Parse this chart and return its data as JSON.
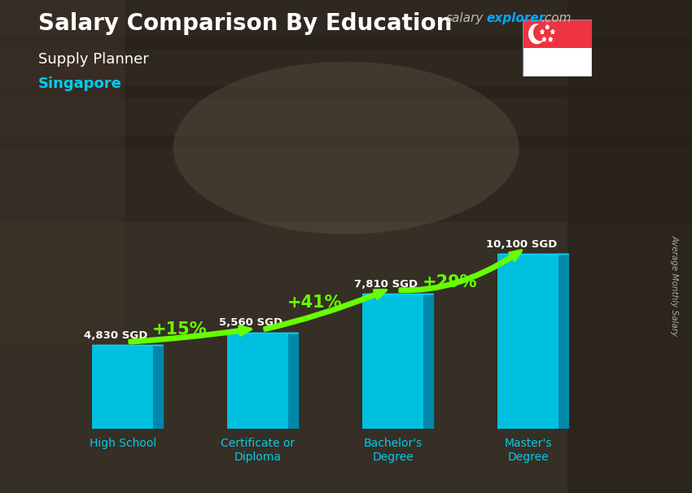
{
  "title_main": "Salary Comparison By Education",
  "title_sub": "Supply Planner",
  "title_location": "Singapore",
  "watermark_salary": "salary",
  "watermark_explorer": "explorer",
  "watermark_com": ".com",
  "ylabel_rotated": "Average Monthly Salary",
  "categories": [
    "High School",
    "Certificate or\nDiploma",
    "Bachelor's\nDegree",
    "Master's\nDegree"
  ],
  "values": [
    4830,
    5560,
    7810,
    10100
  ],
  "labels": [
    "4,830 SGD",
    "5,560 SGD",
    "7,810 SGD",
    "10,100 SGD"
  ],
  "pct_changes": [
    "+15%",
    "+41%",
    "+29%"
  ],
  "bar_face_color": "#00c0e0",
  "bar_side_color": "#0088aa",
  "bar_top_color": "#00d8f8",
  "bg_dark": "#2b2b2b",
  "text_white": "#ffffff",
  "text_cyan": "#00ccee",
  "text_green": "#aaff00",
  "arrow_green": "#66ff00",
  "site_gray": "#cccccc",
  "site_blue": "#00aaff"
}
